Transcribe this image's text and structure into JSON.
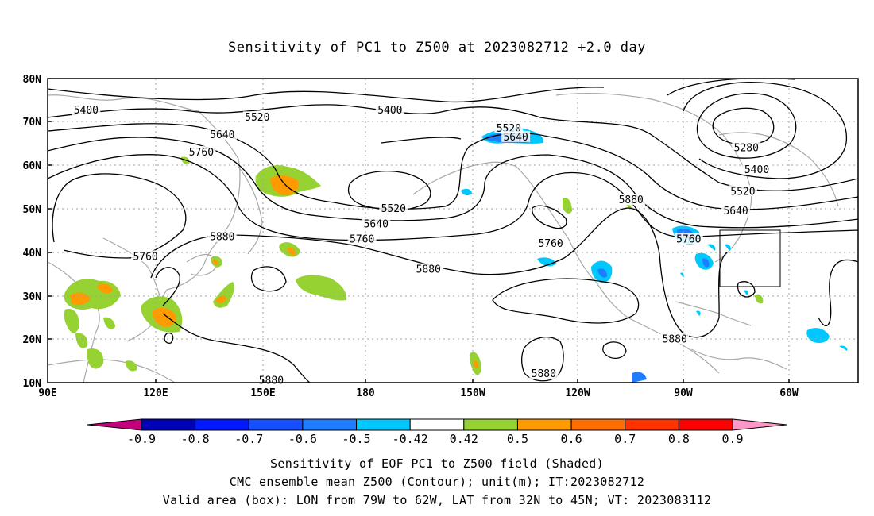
{
  "title": "Sensitivity of PC1 to Z500 at 2023082712 +2.0 day",
  "map": {
    "lon_labels": [
      "90E",
      "120E",
      "150E",
      "180",
      "150W",
      "120W",
      "90W",
      "60W"
    ],
    "lat_labels": [
      "80N",
      "70N",
      "60N",
      "50N",
      "40N",
      "30N",
      "20N",
      "10N"
    ],
    "contour_labels": [
      {
        "text": "5400",
        "lon": 101,
        "lat": 72.7
      },
      {
        "text": "5400",
        "lon": -172,
        "lat": 72.7
      },
      {
        "text": "5520",
        "lon": 150,
        "lat": 71
      },
      {
        "text": "5520",
        "lon": -138,
        "lat": 68.5
      },
      {
        "text": "5640",
        "lon": 140,
        "lat": 67
      },
      {
        "text": "5640",
        "lon": -136,
        "lat": 66.5
      },
      {
        "text": "5760",
        "lon": 134,
        "lat": 63
      },
      {
        "text": "5280",
        "lon": -70,
        "lat": 64
      },
      {
        "text": "5400",
        "lon": -67,
        "lat": 59
      },
      {
        "text": "5520",
        "lon": -71,
        "lat": 54
      },
      {
        "text": "5640",
        "lon": -73,
        "lat": 49.5
      },
      {
        "text": "5880",
        "lon": -103,
        "lat": 52
      },
      {
        "text": "5520",
        "lon": -171,
        "lat": 50
      },
      {
        "text": "5640",
        "lon": -176,
        "lat": 46.5
      },
      {
        "text": "5760",
        "lon": -180,
        "lat": 43
      },
      {
        "text": "5760",
        "lon": -126,
        "lat": 42
      },
      {
        "text": "5760",
        "lon": -86.5,
        "lat": 43
      },
      {
        "text": "5880",
        "lon": 140,
        "lat": 43.5
      },
      {
        "text": "5760",
        "lon": 118,
        "lat": 39
      },
      {
        "text": "5880",
        "lon": -161,
        "lat": 36
      },
      {
        "text": "5880",
        "lon": -128,
        "lat": 12
      },
      {
        "text": "5880",
        "lon": -90.5,
        "lat": 20
      },
      {
        "text": "5880",
        "lon": 154,
        "lat": 10.5
      }
    ],
    "valid_box": {
      "lon_west": -79,
      "lon_east": -62,
      "lat_south": 32,
      "lat_north": 45
    }
  },
  "colorbar": {
    "labels": [
      "-0.9",
      "-0.8",
      "-0.7",
      "-0.6",
      "-0.5",
      "-0.42",
      "0.42",
      "0.5",
      "0.6",
      "0.7",
      "0.8",
      "0.9"
    ],
    "colors": [
      "#c4007a",
      "#0000b4",
      "#0019ff",
      "#1450ff",
      "#1e7dff",
      "#00c8ff",
      "#ffffff",
      "#96d232",
      "#ff9b00",
      "#ff6e00",
      "#ff3200",
      "#ff0000",
      "#ff96c8"
    ]
  },
  "captions": {
    "line1": "Sensitivity of EOF PC1 to Z500 field (Shaded)",
    "line2": "CMC ensemble mean Z500 (Contour); unit(m); IT:2023082712",
    "line3": "Valid area (box): LON from 79W to 62W, LAT from 32N to 45N; VT: 2023083112"
  }
}
